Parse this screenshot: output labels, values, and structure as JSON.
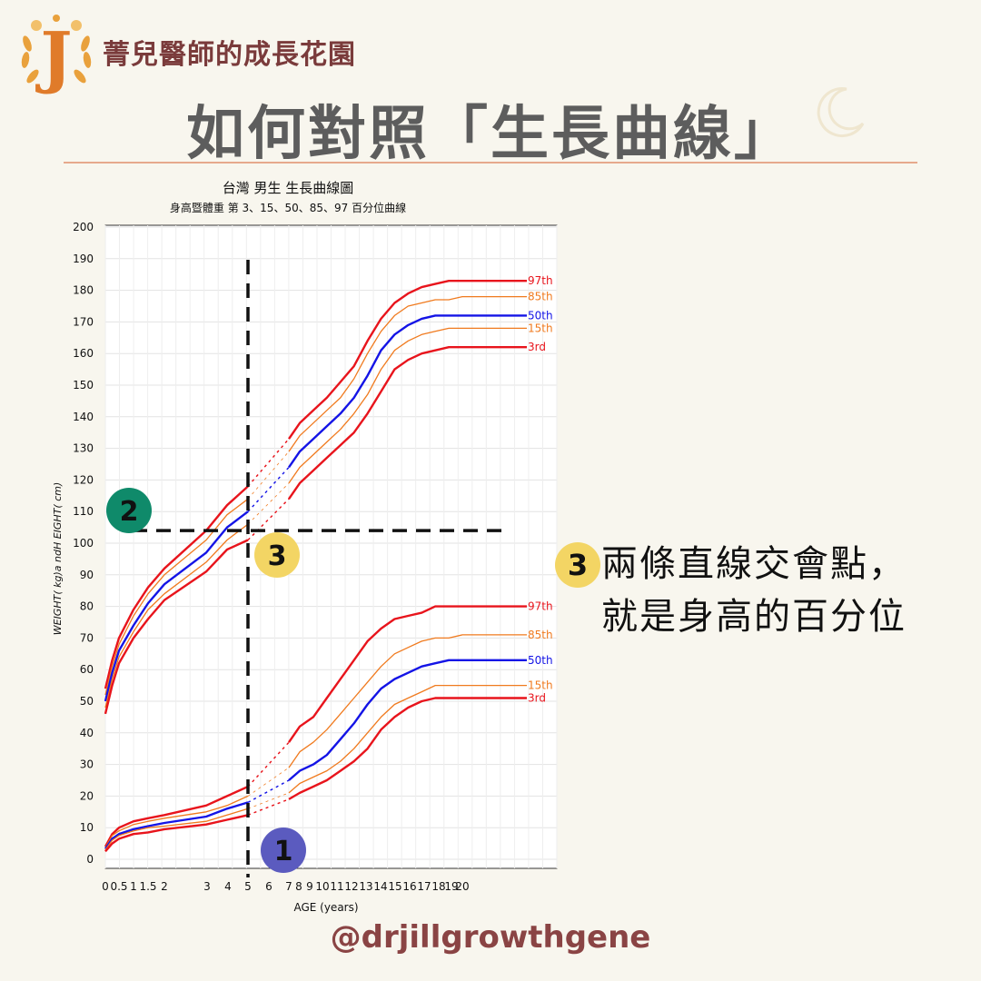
{
  "brand": {
    "logo_letter": "J",
    "name": "菁兒醫師的成長花園"
  },
  "headline": "如何對照「生長曲線」",
  "chart_data": {
    "type": "line",
    "title": "台灣 男生 生長曲線圖",
    "subtitle": "身高暨體重 第 3、15、50、85、97 百分位曲線",
    "xlabel": "AGE (years)",
    "ylabel": "WEIGHT( kg)a ndH EIGHT( cm)",
    "x_tick_labels": [
      "0",
      "0.5",
      "1",
      "1.5",
      "2",
      "3",
      "4",
      "5",
      "6",
      "7",
      "8",
      "9",
      "10",
      "11",
      "12",
      "13",
      "14",
      "15",
      "16",
      "17",
      "18",
      "19",
      "20"
    ],
    "y_ticks": [
      0,
      10,
      20,
      30,
      40,
      50,
      60,
      70,
      80,
      90,
      100,
      110,
      120,
      130,
      140,
      150,
      160,
      170,
      180,
      190,
      200
    ],
    "ylim": [
      0,
      200
    ],
    "grid": true,
    "height_series": [
      {
        "name": "97th",
        "color": "#e8141c",
        "x": [
          0,
          0.25,
          0.5,
          1,
          1.5,
          2,
          3,
          4,
          5,
          7,
          8,
          9,
          10,
          11,
          12,
          13,
          14,
          15,
          16,
          17,
          18,
          19,
          20
        ],
        "y": [
          54,
          63,
          70,
          79,
          86,
          92,
          104,
          112,
          118,
          133,
          138,
          142,
          146,
          151,
          156,
          164,
          171,
          176,
          179,
          181,
          182,
          183,
          183
        ]
      },
      {
        "name": "85th",
        "color": "#f07a1e",
        "x": [
          0,
          0.25,
          0.5,
          1,
          1.5,
          2,
          3,
          4,
          5,
          7,
          8,
          9,
          10,
          11,
          12,
          13,
          14,
          15,
          16,
          17,
          18,
          19,
          20
        ],
        "y": [
          52,
          61,
          68,
          77,
          84,
          90,
          101,
          109,
          114,
          129,
          134,
          138,
          142,
          146,
          152,
          160,
          167,
          172,
          175,
          176,
          177,
          177,
          178
        ]
      },
      {
        "name": "50th",
        "color": "#1414e6",
        "x": [
          0,
          0.25,
          0.5,
          1,
          1.5,
          2,
          3,
          4,
          5,
          7,
          8,
          9,
          10,
          11,
          12,
          13,
          14,
          15,
          16,
          17,
          18,
          19,
          20
        ],
        "y": [
          50,
          59,
          66,
          74,
          81,
          87,
          97,
          105,
          110,
          124,
          129,
          133,
          137,
          141,
          146,
          153,
          161,
          166,
          169,
          171,
          172,
          172,
          172
        ]
      },
      {
        "name": "15th",
        "color": "#f07a1e",
        "x": [
          0,
          0.25,
          0.5,
          1,
          1.5,
          2,
          3,
          4,
          5,
          7,
          8,
          9,
          10,
          11,
          12,
          13,
          14,
          15,
          16,
          17,
          18,
          19,
          20
        ],
        "y": [
          48,
          57,
          64,
          72,
          79,
          84,
          94,
          101,
          106,
          119,
          124,
          128,
          132,
          136,
          141,
          147,
          155,
          161,
          164,
          166,
          167,
          168,
          168
        ]
      },
      {
        "name": "3rd",
        "color": "#e8141c",
        "x": [
          0,
          0.25,
          0.5,
          1,
          1.5,
          2,
          3,
          4,
          5,
          7,
          8,
          9,
          10,
          11,
          12,
          13,
          14,
          15,
          16,
          17,
          18,
          19,
          20
        ],
        "y": [
          46,
          55,
          62,
          70,
          76,
          82,
          91,
          98,
          101,
          114,
          119,
          123,
          127,
          131,
          135,
          141,
          148,
          155,
          158,
          160,
          161,
          162,
          162
        ]
      }
    ],
    "weight_series": [
      {
        "name": "97th",
        "color": "#e8141c",
        "x": [
          0,
          0.25,
          0.5,
          1,
          1.5,
          2,
          3,
          4,
          5,
          7,
          8,
          9,
          10,
          11,
          12,
          13,
          14,
          15,
          16,
          17,
          18,
          19,
          20
        ],
        "y": [
          4,
          8,
          10,
          12,
          13,
          14,
          17,
          20,
          23,
          37,
          42,
          45,
          51,
          57,
          63,
          69,
          73,
          76,
          77,
          78,
          80,
          80,
          80
        ]
      },
      {
        "name": "85th",
        "color": "#f07a1e",
        "x": [
          0,
          0.25,
          0.5,
          1,
          1.5,
          2,
          3,
          4,
          5,
          7,
          8,
          9,
          10,
          11,
          12,
          13,
          14,
          15,
          16,
          17,
          18,
          19,
          20
        ],
        "y": [
          3.6,
          7.5,
          9,
          11,
          12,
          13,
          15,
          17,
          20,
          29,
          34,
          37,
          41,
          46,
          51,
          56,
          61,
          65,
          67,
          69,
          70,
          70,
          71
        ]
      },
      {
        "name": "50th",
        "color": "#1414e6",
        "x": [
          0,
          0.25,
          0.5,
          1,
          1.5,
          2,
          3,
          4,
          5,
          7,
          8,
          9,
          10,
          11,
          12,
          13,
          14,
          15,
          16,
          17,
          18,
          19,
          20
        ],
        "y": [
          3.3,
          6.5,
          8,
          9.5,
          10.5,
          11.5,
          13.5,
          16,
          18,
          25,
          28,
          30,
          33,
          38,
          43,
          49,
          54,
          57,
          59,
          61,
          62,
          63,
          63
        ]
      },
      {
        "name": "15th",
        "color": "#f07a1e",
        "x": [
          0,
          0.25,
          0.5,
          1,
          1.5,
          2,
          3,
          4,
          5,
          7,
          8,
          9,
          10,
          11,
          12,
          13,
          14,
          15,
          16,
          17,
          18,
          19,
          20
        ],
        "y": [
          3,
          6,
          7.5,
          9,
          10,
          10.5,
          12,
          14,
          16,
          21,
          24,
          26,
          28,
          31,
          35,
          40,
          45,
          49,
          51,
          53,
          55,
          55,
          55
        ]
      },
      {
        "name": "3rd",
        "color": "#e8141c",
        "x": [
          0,
          0.25,
          0.5,
          1,
          1.5,
          2,
          3,
          4,
          5,
          7,
          8,
          9,
          10,
          11,
          12,
          13,
          14,
          15,
          16,
          17,
          18,
          19,
          20
        ],
        "y": [
          2.5,
          5,
          6.5,
          8,
          8.5,
          9.5,
          11,
          12.5,
          14,
          19,
          21,
          23,
          25,
          28,
          31,
          35,
          41,
          45,
          48,
          50,
          51,
          51,
          51
        ]
      }
    ],
    "reference_lines": {
      "age_x": 5,
      "height_y": 104
    },
    "markers": [
      {
        "label": "1",
        "color": "#5b5bbf",
        "text_color": "#111",
        "point": "age 5 on the x-axis"
      },
      {
        "label": "2",
        "color": "#0f8a6a",
        "text_color": "#111",
        "point": "height 104 on the y-axis"
      },
      {
        "label": "3",
        "color": "#f3d564",
        "text_color": "#111",
        "point": "intersection"
      }
    ]
  },
  "callout": {
    "badge": "3",
    "badge_color": "#f3d564",
    "line1": "兩條直線交會點，",
    "line2": "就是身高的百分位"
  },
  "footer_handle": "@drjillgrowthgene",
  "colors": {
    "headline": "#5d5d5d",
    "brand": "#7a3b3b",
    "rule": "#e6a98c",
    "background": "#f8f6ee"
  }
}
